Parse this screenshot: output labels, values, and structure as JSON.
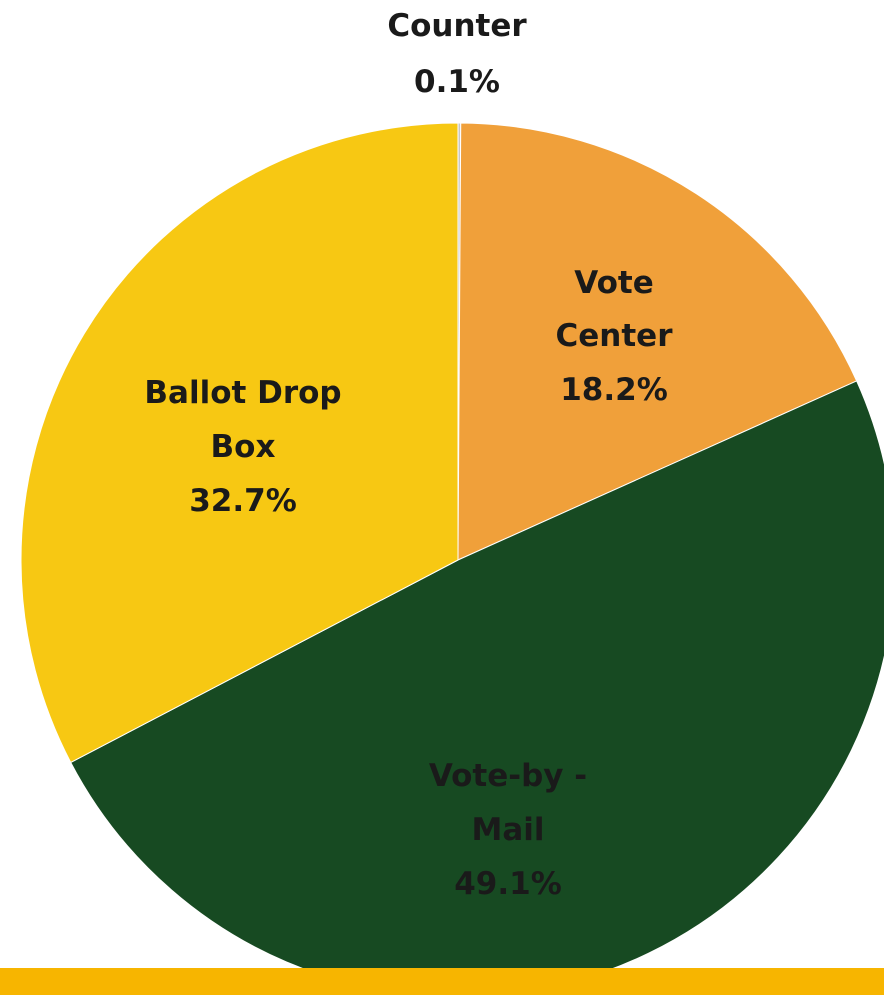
{
  "chart_data": {
    "type": "pie",
    "title": "",
    "slices": [
      {
        "label": "Counter",
        "value": 0.1,
        "display": "0.1%",
        "color": "#c8c8c8"
      },
      {
        "label": "Vote Center",
        "value": 18.2,
        "display": "18.2%",
        "color": "#f0a03a"
      },
      {
        "label": "Vote-by - Mail",
        "value": 49.1,
        "display": "49.1%",
        "color": "#174a22"
      },
      {
        "label": "Ballot Drop Box",
        "value": 32.7,
        "display": "32.7%",
        "color": "#f7c813"
      }
    ],
    "labels": {
      "counter": {
        "line1": "Counter",
        "pct": "0.1%"
      },
      "vote_center": {
        "line1": "Vote",
        "line2": "Center",
        "pct": "18.2%"
      },
      "vote_by_mail": {
        "line1": "Vote-by -",
        "line2": "Mail",
        "pct": "49.1%"
      },
      "ballot_drop_box": {
        "line1": "Ballot Drop",
        "line2": "Box",
        "pct": "32.7%"
      }
    }
  },
  "theme": {
    "accent_bar": "#f7b500"
  }
}
